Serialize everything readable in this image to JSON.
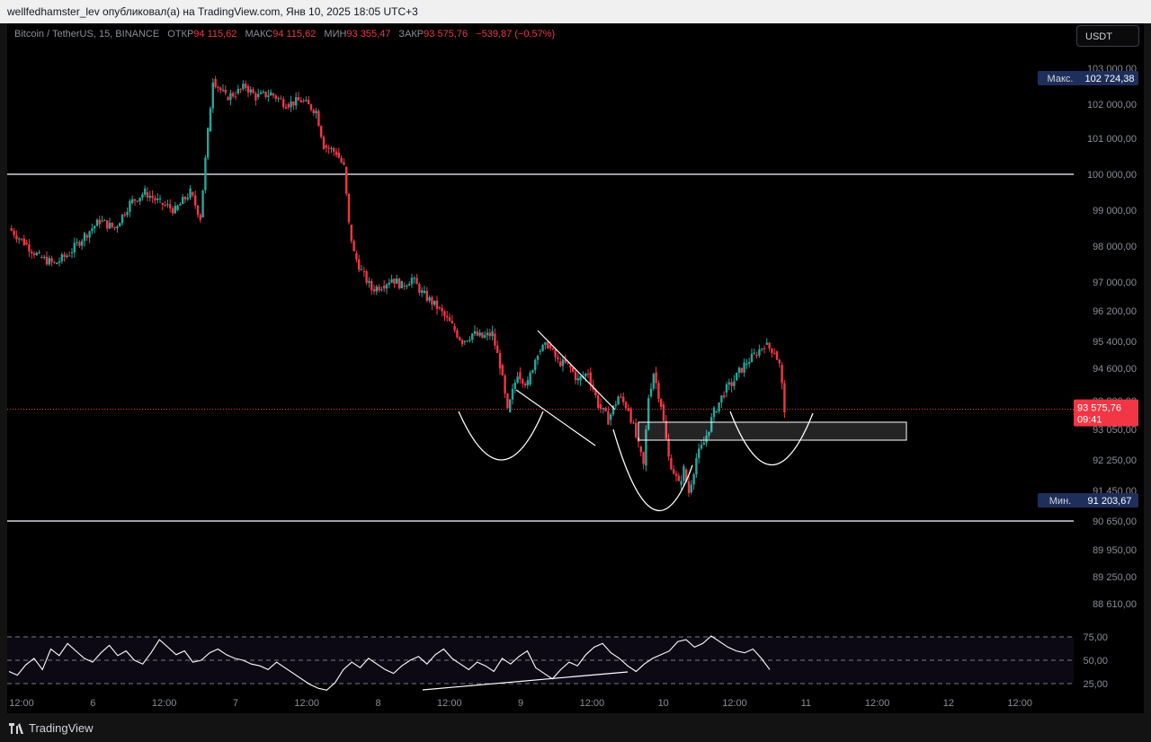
{
  "header": {
    "text": "wellfedhamster_lev опубликовал(а) на TradingView.com, Янв 10, 2025 18:05 UTC+3"
  },
  "currency_button": "USDT",
  "legend": {
    "symbol": "Bitcoin / TetherUS, 15, BINANCE",
    "open_label": "ОТКР",
    "open": "94 115,62",
    "high_label": "МАКС",
    "high": "94 115,62",
    "low_label": "МИН",
    "low": "93 355,47",
    "close_label": "ЗАКР",
    "close": "93 575,76",
    "change": "−539,87 (−0,57%)"
  },
  "price_badges": {
    "max_label": "Макс.",
    "max_value": "102 724,38",
    "min_label": "Мин.",
    "min_value": "91 203,67",
    "last_value": "93 575,76",
    "countdown": "09:41"
  },
  "footer": {
    "brand": "TradingView"
  },
  "colors": {
    "up": "#26a69a",
    "down": "#f23645",
    "background": "#000000",
    "rsi": "#ffffff",
    "badge": "#1e2f5c"
  },
  "chart_data": {
    "type": "candlestick",
    "symbol": "Bitcoin / TetherUS",
    "interval": "15",
    "y_ticks": [
      103000,
      102000,
      101000,
      100000,
      99000,
      98000,
      97000,
      96200,
      95400,
      94600,
      93800,
      93050,
      92250,
      91450,
      90650,
      89950,
      89250,
      88610
    ],
    "y_tick_labels": [
      "103 000,00",
      "102 000,00",
      "101 000,00",
      "100 000,00",
      "99 000,00",
      "98 000,00",
      "97 000,00",
      "96 200,00",
      "95 400,00",
      "94 600,00",
      "93 800,00",
      "93 050,00",
      "92 250,00",
      "91 450,00",
      "90 650,00",
      "89 950,00",
      "89 250,00",
      "88 610,00"
    ],
    "x_tick_labels": [
      "12:00",
      "6",
      "12:00",
      "7",
      "12:00",
      "8",
      "12:00",
      "9",
      "12:00",
      "10",
      "12:00",
      "11",
      "12:00",
      "12",
      "12:00"
    ],
    "price_path": [
      [
        0,
        98500
      ],
      [
        3,
        98100
      ],
      [
        6,
        97700
      ],
      [
        9,
        97500
      ],
      [
        12,
        97800
      ],
      [
        15,
        98300
      ],
      [
        18,
        98700
      ],
      [
        21,
        98500
      ],
      [
        24,
        99200
      ],
      [
        27,
        99500
      ],
      [
        30,
        99200
      ],
      [
        33,
        99000
      ],
      [
        36,
        99500
      ],
      [
        38,
        98800
      ],
      [
        39.5,
        101200
      ],
      [
        40.5,
        102700
      ],
      [
        43,
        102200
      ],
      [
        45,
        102300
      ],
      [
        47,
        102500
      ],
      [
        49,
        102200
      ],
      [
        52,
        102300
      ],
      [
        55,
        102000
      ],
      [
        58,
        102100
      ],
      [
        61,
        101800
      ],
      [
        62.5,
        100800
      ],
      [
        65,
        100600
      ],
      [
        66.5,
        100200
      ],
      [
        67.5,
        98600
      ],
      [
        68.5,
        97800
      ],
      [
        70,
        97300
      ],
      [
        72,
        96800
      ],
      [
        74,
        96900
      ],
      [
        76,
        97100
      ],
      [
        78,
        96900
      ],
      [
        80,
        97100
      ],
      [
        82,
        96700
      ],
      [
        85,
        96300
      ],
      [
        88,
        95800
      ],
      [
        90,
        95400
      ],
      [
        92,
        95600
      ],
      [
        94,
        95500
      ],
      [
        96,
        95600
      ],
      [
        97.5,
        94700
      ],
      [
        99,
        93500
      ],
      [
        101,
        94500
      ],
      [
        103,
        94200
      ],
      [
        105,
        95100
      ],
      [
        107,
        95300
      ],
      [
        109,
        94800
      ],
      [
        111,
        94700
      ],
      [
        113,
        94300
      ],
      [
        115,
        94500
      ],
      [
        117,
        93700
      ],
      [
        119,
        93300
      ],
      [
        121,
        93900
      ],
      [
        123,
        93600
      ],
      [
        125,
        92600
      ],
      [
        126,
        92100
      ],
      [
        127,
        93900
      ],
      [
        128,
        94500
      ],
      [
        129.5,
        93700
      ],
      [
        131,
        92300
      ],
      [
        133,
        91600
      ],
      [
        134,
        92000
      ],
      [
        135,
        91400
      ],
      [
        136.5,
        92300
      ],
      [
        138,
        92700
      ],
      [
        140,
        93500
      ],
      [
        142,
        94000
      ],
      [
        144,
        94300
      ],
      [
        146,
        94700
      ],
      [
        148,
        95000
      ],
      [
        150,
        95300
      ],
      [
        152,
        95100
      ],
      [
        153,
        94700
      ],
      [
        154,
        93600
      ]
    ],
    "horizontal_levels": [
      100000,
      90650
    ],
    "last_price": 93575.76,
    "max": 102724.38,
    "min": 91203.67,
    "rsi": {
      "y_ticks": [
        75,
        50,
        25
      ],
      "y_tick_labels": [
        "75,00",
        "50,00",
        "25,00"
      ],
      "values": [
        38,
        34,
        45,
        52,
        40,
        62,
        55,
        68,
        60,
        52,
        48,
        58,
        66,
        55,
        60,
        50,
        46,
        58,
        72,
        64,
        56,
        60,
        48,
        50,
        58,
        62,
        56,
        52,
        50,
        46,
        44,
        40,
        48,
        42,
        36,
        30,
        24,
        20,
        18,
        26,
        40,
        48,
        42,
        52,
        46,
        40,
        36,
        44,
        50,
        54,
        46,
        56,
        62,
        52,
        46,
        40,
        48,
        44,
        38,
        52,
        46,
        54,
        60,
        42,
        36,
        30,
        40,
        48,
        44,
        56,
        64,
        68,
        58,
        52,
        44,
        38,
        46,
        52,
        56,
        60,
        70,
        72,
        64,
        68,
        76,
        70,
        64,
        60,
        58,
        62,
        52,
        40
      ]
    }
  }
}
